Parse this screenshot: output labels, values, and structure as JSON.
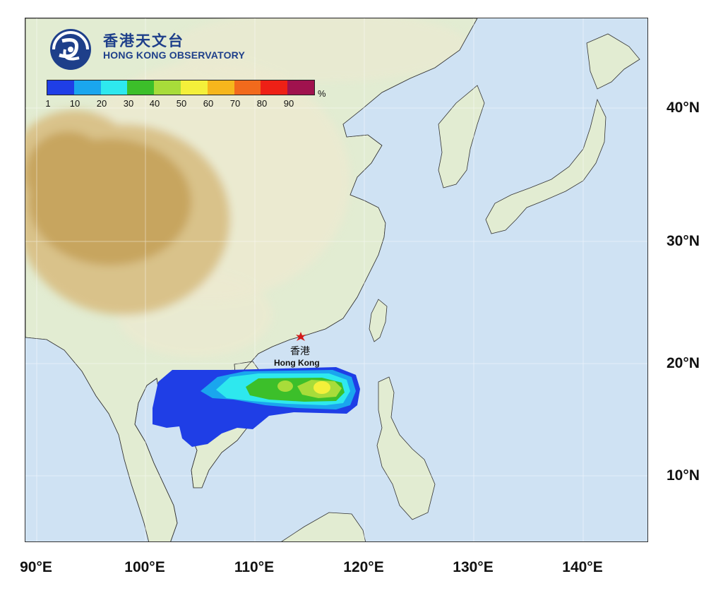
{
  "organization": {
    "name_cn": "香港天文台",
    "name_en": "HONG KONG OBSERVATORY"
  },
  "legend": {
    "unit": "%",
    "ticks": [
      "1",
      "10",
      "20",
      "30",
      "40",
      "50",
      "60",
      "70",
      "80",
      "90"
    ],
    "colors": [
      "#1f3ee6",
      "#1aa6ee",
      "#2ee8ee",
      "#3cbf2a",
      "#a8dc3a",
      "#f4f03a",
      "#f6b61c",
      "#f26a1c",
      "#ee2016",
      "#a0124e"
    ]
  },
  "axes": {
    "latitude_labels": [
      "40°N",
      "30°N",
      "20°N",
      "10°N"
    ],
    "longitude_labels": [
      "90°E",
      "100°E",
      "110°E",
      "120°E",
      "130°E",
      "140°E"
    ]
  },
  "location": {
    "name_cn": "香港",
    "name_en": "Hong Kong",
    "lon": 114.2,
    "lat": 22.3,
    "marker_color": "#d21a1a"
  },
  "probability_zones": [
    {
      "level": "1",
      "color": "#1f3ee6"
    },
    {
      "level": "10",
      "color": "#1aa6ee"
    },
    {
      "level": "20",
      "color": "#2ee8ee"
    },
    {
      "level": "30",
      "color": "#3cbf2a"
    },
    {
      "level": "40",
      "color": "#a8dc3a"
    },
    {
      "level": "50",
      "color": "#f4f03a"
    }
  ],
  "map_colors": {
    "sea": "#cfe2f3",
    "lowland": "#e2ecd2",
    "hills": "#ecead0",
    "highland": "#d9c28a",
    "plateau": "#c7a55f"
  }
}
